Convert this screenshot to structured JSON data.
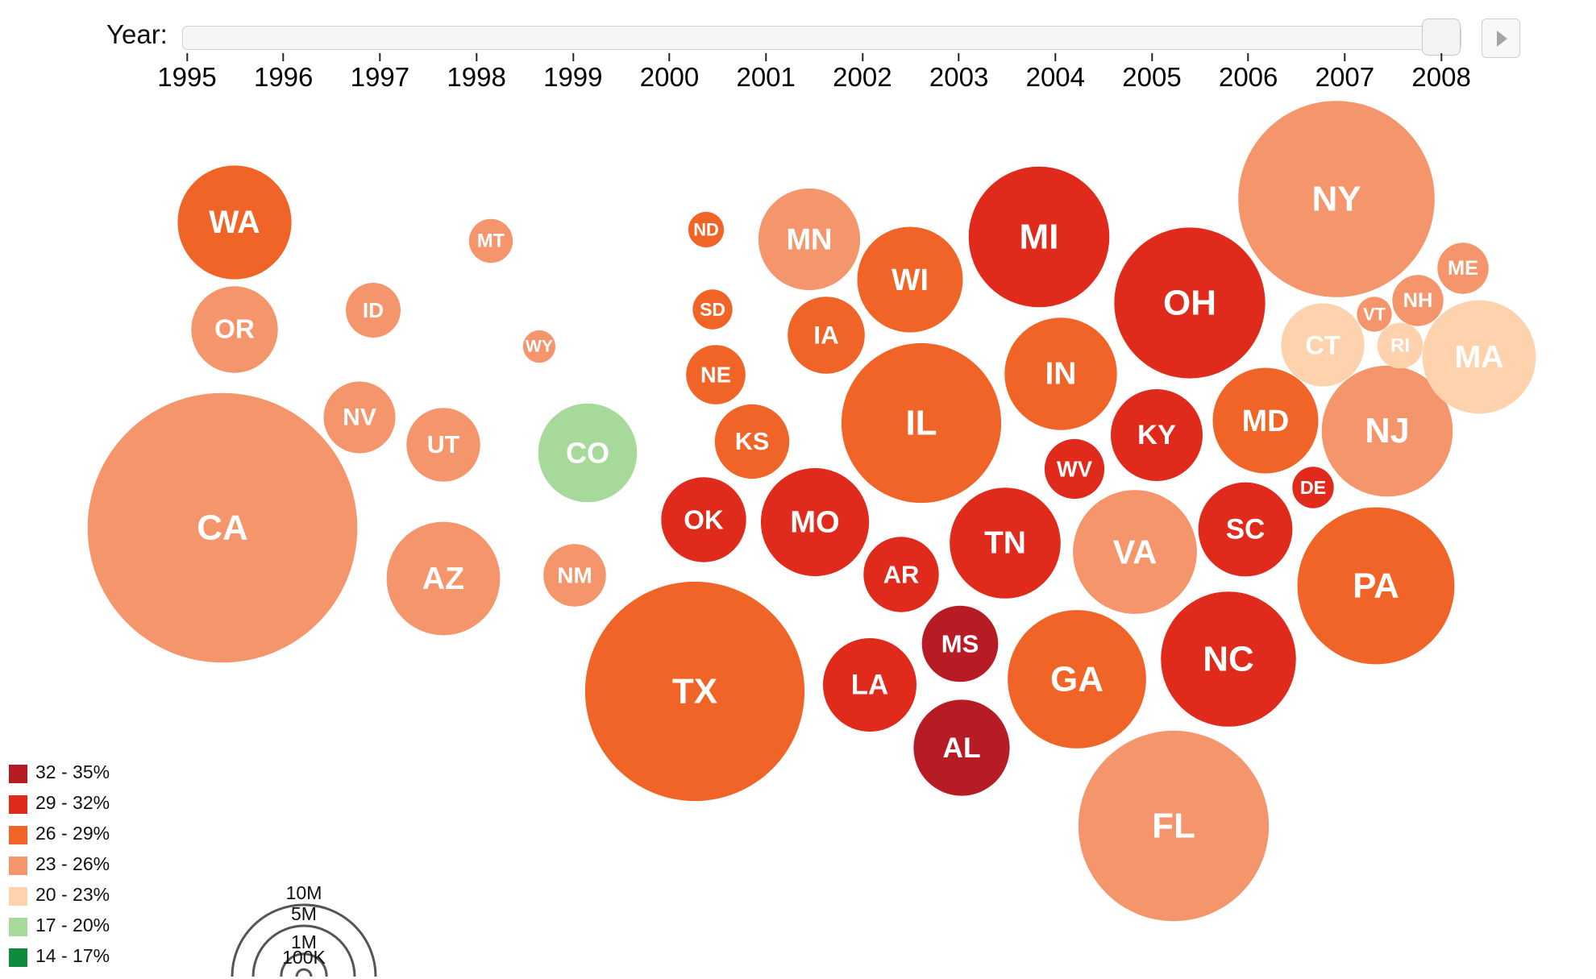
{
  "slider": {
    "label": "Year:",
    "years": [
      "1995",
      "1996",
      "1997",
      "1998",
      "1999",
      "2000",
      "2001",
      "2002",
      "2003",
      "2004",
      "2005",
      "2006",
      "2007",
      "2008"
    ],
    "selected_year": "2008"
  },
  "chart_data": {
    "type": "bubble-map",
    "title": "",
    "year": "2008",
    "states": [
      {
        "abbr": "WA",
        "population": 6550000,
        "bin": "26 - 29%"
      },
      {
        "abbr": "OR",
        "population": 3790000,
        "bin": "23 - 26%"
      },
      {
        "abbr": "CA",
        "population": 36760000,
        "bin": "23 - 26%"
      },
      {
        "abbr": "MT",
        "population": 970000,
        "bin": "23 - 26%"
      },
      {
        "abbr": "ID",
        "population": 1520000,
        "bin": "23 - 26%"
      },
      {
        "abbr": "WY",
        "population": 530000,
        "bin": "23 - 26%"
      },
      {
        "abbr": "NV",
        "population": 2600000,
        "bin": "23 - 26%"
      },
      {
        "abbr": "UT",
        "population": 2740000,
        "bin": "23 - 26%"
      },
      {
        "abbr": "AZ",
        "population": 6500000,
        "bin": "23 - 26%"
      },
      {
        "abbr": "CO",
        "population": 4940000,
        "bin": "17 - 20%"
      },
      {
        "abbr": "NM",
        "population": 1980000,
        "bin": "23 - 26%"
      },
      {
        "abbr": "ND",
        "population": 640000,
        "bin": "26 - 29%"
      },
      {
        "abbr": "SD",
        "population": 800000,
        "bin": "26 - 29%"
      },
      {
        "abbr": "NE",
        "population": 1780000,
        "bin": "26 - 29%"
      },
      {
        "abbr": "KS",
        "population": 2800000,
        "bin": "26 - 29%"
      },
      {
        "abbr": "OK",
        "population": 3640000,
        "bin": "29 - 32%"
      },
      {
        "abbr": "TX",
        "population": 24330000,
        "bin": "26 - 29%"
      },
      {
        "abbr": "MN",
        "population": 5220000,
        "bin": "23 - 26%"
      },
      {
        "abbr": "IA",
        "population": 3000000,
        "bin": "26 - 29%"
      },
      {
        "abbr": "MO",
        "population": 5910000,
        "bin": "29 - 32%"
      },
      {
        "abbr": "AR",
        "population": 2860000,
        "bin": "29 - 32%"
      },
      {
        "abbr": "LA",
        "population": 4410000,
        "bin": "29 - 32%"
      },
      {
        "abbr": "WI",
        "population": 5630000,
        "bin": "26 - 29%"
      },
      {
        "abbr": "IL",
        "population": 12900000,
        "bin": "26 - 29%"
      },
      {
        "abbr": "MS",
        "population": 2940000,
        "bin": "32 - 35%"
      },
      {
        "abbr": "AL",
        "population": 4660000,
        "bin": "32 - 35%"
      },
      {
        "abbr": "MI",
        "population": 10000000,
        "bin": "29 - 32%"
      },
      {
        "abbr": "IN",
        "population": 6380000,
        "bin": "26 - 29%"
      },
      {
        "abbr": "TN",
        "population": 6210000,
        "bin": "29 - 32%"
      },
      {
        "abbr": "KY",
        "population": 4270000,
        "bin": "29 - 32%"
      },
      {
        "abbr": "WV",
        "population": 1810000,
        "bin": "29 - 32%"
      },
      {
        "abbr": "OH",
        "population": 11490000,
        "bin": "29 - 32%"
      },
      {
        "abbr": "GA",
        "population": 9690000,
        "bin": "26 - 29%"
      },
      {
        "abbr": "FL",
        "population": 18330000,
        "bin": "23 - 26%"
      },
      {
        "abbr": "VA",
        "population": 7770000,
        "bin": "23 - 26%"
      },
      {
        "abbr": "NC",
        "population": 9220000,
        "bin": "29 - 32%"
      },
      {
        "abbr": "SC",
        "population": 4480000,
        "bin": "29 - 32%"
      },
      {
        "abbr": "MD",
        "population": 5630000,
        "bin": "26 - 29%"
      },
      {
        "abbr": "DE",
        "population": 870000,
        "bin": "29 - 32%"
      },
      {
        "abbr": "PA",
        "population": 12450000,
        "bin": "26 - 29%"
      },
      {
        "abbr": "NJ",
        "population": 8680000,
        "bin": "23 - 26%"
      },
      {
        "abbr": "NY",
        "population": 19490000,
        "bin": "23 - 26%"
      },
      {
        "abbr": "CT",
        "population": 3500000,
        "bin": "20 - 23%"
      },
      {
        "abbr": "RI",
        "population": 1050000,
        "bin": "20 - 23%"
      },
      {
        "abbr": "MA",
        "population": 6500000,
        "bin": "20 - 23%"
      },
      {
        "abbr": "VT",
        "population": 620000,
        "bin": "23 - 26%"
      },
      {
        "abbr": "NH",
        "population": 1320000,
        "bin": "23 - 26%"
      },
      {
        "abbr": "ME",
        "population": 1320000,
        "bin": "23 - 26%"
      }
    ],
    "color_legend": [
      {
        "label": "32 - 35%",
        "color": "#b71c24"
      },
      {
        "label": "29 - 32%",
        "color": "#e02b1c"
      },
      {
        "label": "26 - 29%",
        "color": "#f06427"
      },
      {
        "label": "23 - 26%",
        "color": "#f5956b"
      },
      {
        "label": "20 - 23%",
        "color": "#fdd2ac"
      },
      {
        "label": "17 - 20%",
        "color": "#a6d99a"
      },
      {
        "label": "14 - 17%",
        "color": "#0d8a3c"
      }
    ],
    "size_legend": [
      {
        "label": "10M",
        "value": 10000000
      },
      {
        "label": "5M",
        "value": 5000000
      },
      {
        "label": "1M",
        "value": 1000000
      },
      {
        "label": "100K",
        "value": 100000
      }
    ]
  }
}
